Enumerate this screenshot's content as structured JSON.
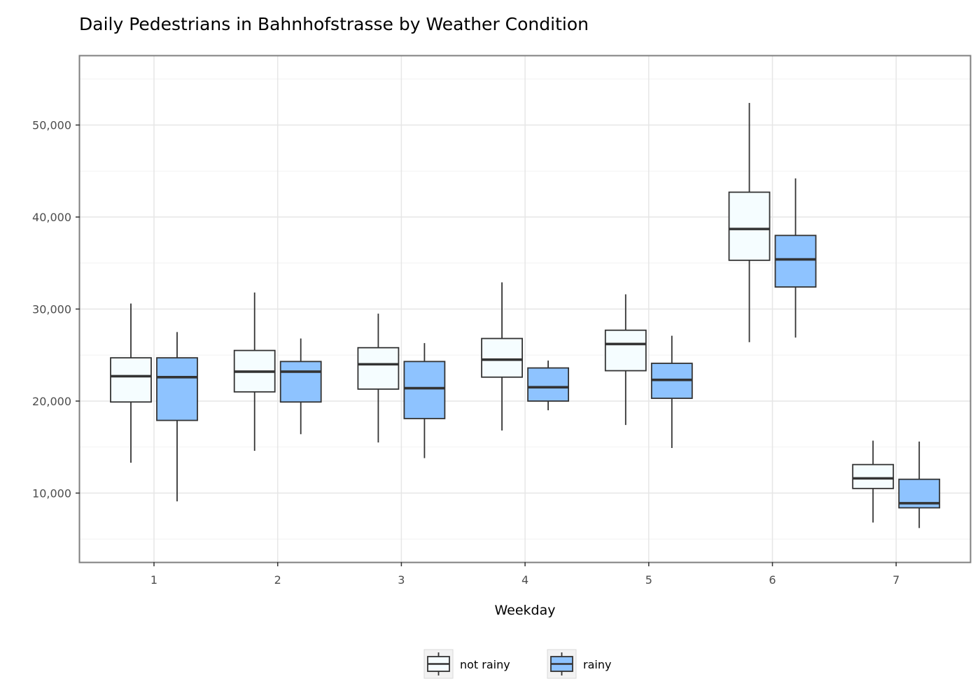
{
  "chart_data": {
    "type": "boxplot",
    "title": "Daily Pedestrians in Bahnhofstrasse by Weather Condition",
    "xlabel": "Weekday",
    "ylabel": "",
    "categories": [
      "1",
      "2",
      "3",
      "4",
      "5",
      "6",
      "7"
    ],
    "ylim": [
      2500,
      57500
    ],
    "yticks": [
      10000,
      20000,
      30000,
      40000,
      50000
    ],
    "ytick_labels": [
      "10,000",
      "20,000",
      "30,000",
      "40,000",
      "50,000"
    ],
    "grid": true,
    "legend_position": "bottom",
    "series": [
      {
        "name": "not rainy",
        "color": "#f5fdff",
        "boxes": [
          {
            "min": 13300,
            "q1": 19900,
            "median": 22700,
            "q3": 24700,
            "max": 30600
          },
          {
            "min": 14600,
            "q1": 21000,
            "median": 23200,
            "q3": 25500,
            "max": 31800
          },
          {
            "min": 15500,
            "q1": 21300,
            "median": 24000,
            "q3": 25800,
            "max": 29500
          },
          {
            "min": 16800,
            "q1": 22600,
            "median": 24500,
            "q3": 26800,
            "max": 32900
          },
          {
            "min": 17400,
            "q1": 23300,
            "median": 26200,
            "q3": 27700,
            "max": 31600
          },
          {
            "min": 26400,
            "q1": 35300,
            "median": 38700,
            "q3": 42700,
            "max": 52400
          },
          {
            "min": 6800,
            "q1": 10500,
            "median": 11600,
            "q3": 13100,
            "max": 15700
          }
        ]
      },
      {
        "name": "rainy",
        "color": "#8ec3ff",
        "boxes": [
          {
            "min": 9100,
            "q1": 17900,
            "median": 22600,
            "q3": 24700,
            "max": 27500
          },
          {
            "min": 16400,
            "q1": 19900,
            "median": 23200,
            "q3": 24300,
            "max": 26800
          },
          {
            "min": 13800,
            "q1": 18100,
            "median": 21400,
            "q3": 24300,
            "max": 26300
          },
          {
            "min": 19000,
            "q1": 20000,
            "median": 21500,
            "q3": 23600,
            "max": 24400
          },
          {
            "min": 14900,
            "q1": 20300,
            "median": 22300,
            "q3": 24100,
            "max": 27100
          },
          {
            "min": 26900,
            "q1": 32400,
            "median": 35400,
            "q3": 38000,
            "max": 44200
          },
          {
            "min": 6200,
            "q1": 8400,
            "median": 8900,
            "q3": 11500,
            "max": 15600
          }
        ]
      }
    ]
  }
}
